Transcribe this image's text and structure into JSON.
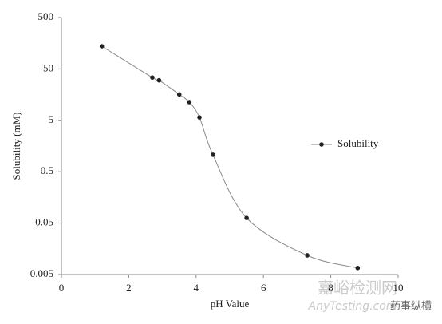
{
  "chart_data": {
    "type": "line",
    "x_label": "pH Value",
    "y_label": "Solubility (mM)",
    "x": [
      1.2,
      2.7,
      2.9,
      3.5,
      3.8,
      4.1,
      4.5,
      5.5,
      7.3,
      8.8
    ],
    "series": [
      {
        "name": "Solubility",
        "color": "#222222",
        "line_color": "#8a8a8a",
        "values": [
          138,
          34,
          30,
          16,
          11.3,
          5.7,
          1.07,
          0.063,
          0.0118,
          0.0067
        ]
      }
    ],
    "xlim": [
      0,
      10
    ],
    "xticks": [
      0,
      2,
      4,
      6,
      8,
      10
    ],
    "ylim": [
      0.005,
      500
    ],
    "yticks": [
      0.005,
      0.05,
      0.5,
      5,
      50,
      500
    ],
    "log_y": true,
    "grid": false,
    "smooth": true,
    "legend": "right",
    "watermark": [
      "嘉峪检测网",
      "AnyTesting.com",
      "药事纵横"
    ]
  }
}
